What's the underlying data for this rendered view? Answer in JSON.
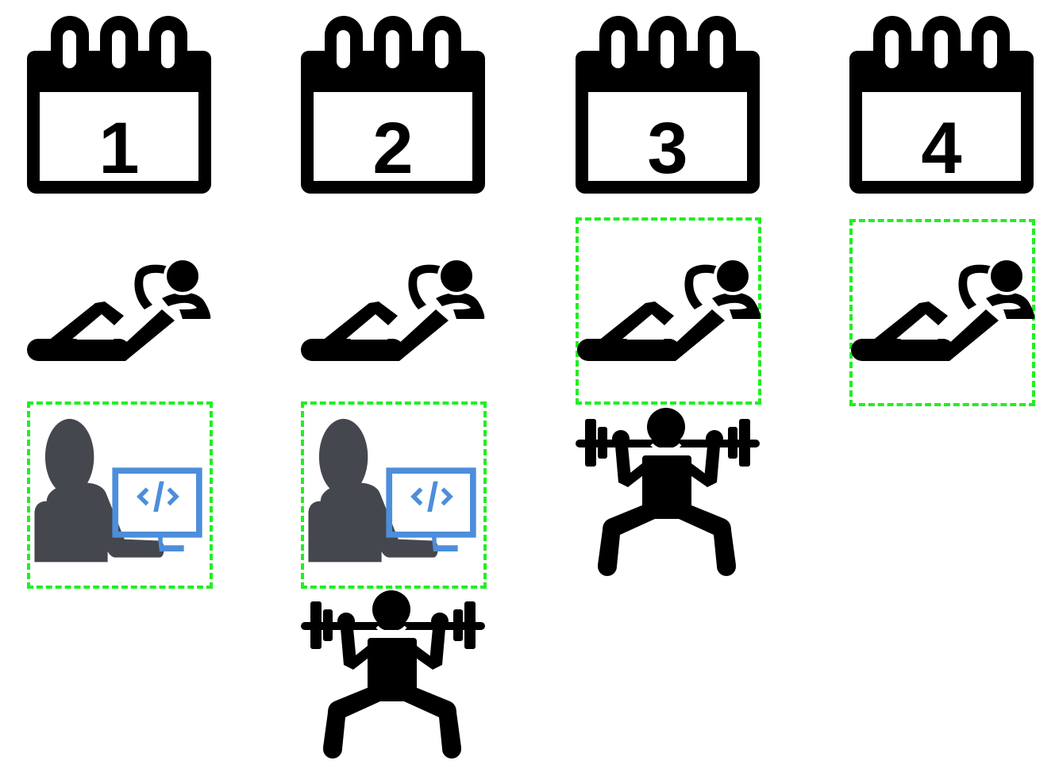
{
  "colors": {
    "icon": "#000000",
    "person": "#44474d",
    "monitor": "#4d8edb",
    "selection": "#22ee22"
  },
  "days": [
    {
      "label": "1",
      "icons": [
        "situp-icon",
        "coder-icon"
      ],
      "selected": [
        "coder-icon"
      ]
    },
    {
      "label": "2",
      "icons": [
        "situp-icon",
        "coder-icon",
        "weightlifting-icon"
      ],
      "selected": [
        "coder-icon"
      ]
    },
    {
      "label": "3",
      "icons": [
        "situp-icon",
        "weightlifting-icon"
      ],
      "selected": [
        "situp-icon"
      ]
    },
    {
      "label": "4",
      "icons": [
        "situp-icon"
      ],
      "selected": [
        "situp-icon"
      ]
    }
  ]
}
